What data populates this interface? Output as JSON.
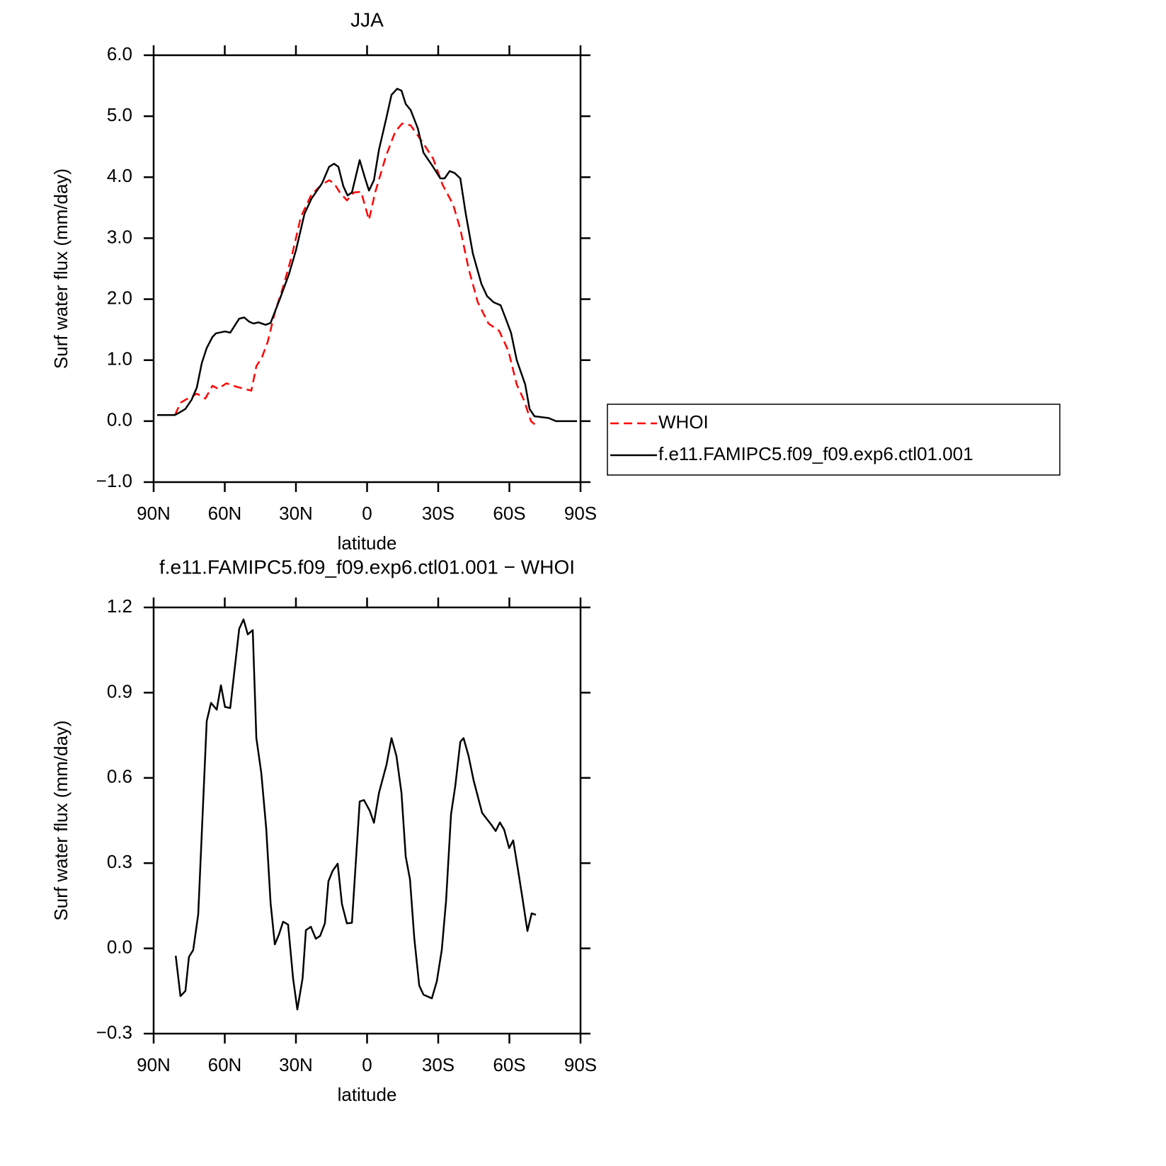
{
  "chart_data": [
    {
      "type": "line",
      "title": "JJA",
      "xlabel": "latitude",
      "ylabel": "Surf water flux (mm/day)",
      "xlim": [
        90,
        -90
      ],
      "xticks": [
        {
          "value": 90,
          "label": "90N"
        },
        {
          "value": 60,
          "label": "60N"
        },
        {
          "value": 30,
          "label": "30N"
        },
        0,
        {
          "value": -30,
          "label": "30S"
        },
        {
          "value": -60,
          "label": "60S"
        },
        {
          "value": -90,
          "label": "90S"
        }
      ],
      "ylim": [
        -1,
        6
      ],
      "yticks": [
        {
          "value": -1,
          "label": "−1.0"
        },
        {
          "value": 0,
          "label": "0.0"
        },
        {
          "value": 1,
          "label": "1.0"
        },
        {
          "value": 2,
          "label": "2.0"
        },
        {
          "value": 3,
          "label": "3.0"
        },
        {
          "value": 4,
          "label": "4.0"
        },
        {
          "value": 5,
          "label": "5.0"
        },
        {
          "value": 6,
          "label": "6.0"
        }
      ],
      "legend": "right",
      "series": [
        {
          "name": "WHOI",
          "color": "#ff0000",
          "dashed": true,
          "x": [
            81,
            78.7,
            76.6,
            74,
            71.8,
            68.2,
            65.2,
            62.8,
            59.3,
            54.8,
            48.8,
            46.7,
            44.3,
            41.9,
            38.9,
            35.4,
            31.8,
            27.9,
            23.4,
            19,
            16,
            13.9,
            11.5,
            8.5,
            5.5,
            2.5,
            -0.8,
            -3.4,
            -8,
            -11.9,
            -14.8,
            -18.4,
            -23.8,
            -27.9,
            -31.8,
            -36.3,
            -39.3,
            -42.8,
            -46.7,
            -51.2,
            -55.7,
            -59.6,
            -63.1,
            -66.1,
            -69.1,
            -71.5
          ],
          "values": [
            0.1,
            0.3,
            0.35,
            0.4,
            0.45,
            0.37,
            0.58,
            0.53,
            0.62,
            0.56,
            0.5,
            0.9,
            1.05,
            1.3,
            1.78,
            2.2,
            2.7,
            3.35,
            3.72,
            3.88,
            3.95,
            3.9,
            3.75,
            3.62,
            3.75,
            3.76,
            3.3,
            3.75,
            4.35,
            4.75,
            4.88,
            4.85,
            4.55,
            4.3,
            3.88,
            3.55,
            3.15,
            2.5,
            1.95,
            1.6,
            1.48,
            1.15,
            0.6,
            0.35,
            0.0,
            -0.08
          ]
        },
        {
          "name": "f.e11.FAMIPC5.f09_f09.exp6.ctl01.001",
          "color": "#000000",
          "dashed": false,
          "x": [
            88.5,
            84,
            81,
            78.7,
            76.6,
            74,
            71.8,
            69.7,
            67.6,
            65.2,
            63.7,
            59.9,
            57.7,
            53.9,
            51.8,
            49.7,
            47.9,
            45.8,
            42.8,
            40.7,
            36.8,
            33,
            30,
            26.4,
            23.4,
            19,
            16,
            13.9,
            12.1,
            10,
            8.2,
            6.4,
            3.1,
            1,
            -0.8,
            -2.9,
            -5,
            -8,
            -10.3,
            -12.7,
            -14.5,
            -16.3,
            -18.4,
            -21.4,
            -23.8,
            -27.3,
            -30.9,
            -32.7,
            -34.8,
            -36.9,
            -39.3,
            -41.6,
            -44.6,
            -48.2,
            -50.6,
            -53.3,
            -56.3,
            -58.1,
            -60.7,
            -63.1,
            -66.7,
            -68.5,
            -70.6,
            -76.6,
            -79.6,
            -84,
            -88.5
          ],
          "values": [
            0.1,
            0.1,
            0.1,
            0.15,
            0.2,
            0.35,
            0.55,
            0.95,
            1.2,
            1.38,
            1.44,
            1.47,
            1.45,
            1.68,
            1.7,
            1.63,
            1.6,
            1.62,
            1.58,
            1.61,
            2.0,
            2.4,
            2.8,
            3.4,
            3.65,
            3.9,
            4.17,
            4.22,
            4.17,
            3.85,
            3.7,
            3.75,
            4.28,
            4.0,
            3.78,
            3.95,
            4.45,
            4.95,
            5.35,
            5.45,
            5.42,
            5.2,
            5.1,
            4.8,
            4.4,
            4.2,
            3.98,
            3.98,
            4.1,
            4.07,
            3.98,
            3.4,
            2.75,
            2.25,
            2.05,
            1.95,
            1.9,
            1.72,
            1.45,
            1.0,
            0.6,
            0.2,
            0.08,
            0.05,
            0.0,
            0.0,
            0.0
          ]
        }
      ]
    },
    {
      "type": "line",
      "title": "f.e11.FAMIPC5.f09_f09.exp6.ctl01.001 − WHOI",
      "xlabel": "latitude",
      "ylabel": "Surf water flux (mm/day)",
      "xlim": [
        90,
        -90
      ],
      "xticks": [
        {
          "value": 90,
          "label": "90N"
        },
        {
          "value": 60,
          "label": "60N"
        },
        {
          "value": 30,
          "label": "30N"
        },
        0,
        {
          "value": -30,
          "label": "30S"
        },
        {
          "value": -60,
          "label": "60S"
        },
        {
          "value": -90,
          "label": "90S"
        }
      ],
      "ylim": [
        -0.3,
        1.2
      ],
      "yticks": [
        {
          "value": -0.3,
          "label": "−0.3"
        },
        {
          "value": 0,
          "label": "0.0"
        },
        0.3,
        0.6,
        0.9,
        1.2
      ],
      "color": "#000000",
      "x": [
        80.7,
        78.7,
        76.6,
        75.1,
        73.3,
        71.2,
        67.6,
        65.8,
        63.4,
        61.6,
        59.9,
        57.7,
        53.9,
        52.1,
        50.3,
        48.2,
        46.7,
        44.6,
        42.5,
        40.7,
        38.9,
        37.1,
        35.4,
        33.3,
        31.2,
        29.4,
        27.2,
        25.8,
        23.7,
        21.6,
        19.8,
        17.8,
        16.3,
        14.5,
        12.4,
        10.6,
        8.5,
        6.4,
        3.1,
        1.3,
        -1.1,
        -2.9,
        -5,
        -8.2,
        -10.3,
        -12.4,
        -14.5,
        -16.3,
        -18.1,
        -19.9,
        -22,
        -23.8,
        -27.3,
        -29.4,
        -31.5,
        -33.3,
        -35.4,
        -37.2,
        -39.3,
        -40.7,
        -42.8,
        -44.9,
        -48.5,
        -52.4,
        -54.2,
        -56,
        -57.8,
        -59.9,
        -61.6,
        -63.7,
        -65.5,
        -67.6,
        -69.4,
        -71.2
      ],
      "values": [
        -0.026,
        -0.168,
        -0.15,
        -0.03,
        -0.006,
        0.12,
        0.8,
        0.864,
        0.84,
        0.926,
        0.85,
        0.846,
        1.125,
        1.158,
        1.105,
        1.12,
        0.74,
        0.617,
        0.42,
        0.16,
        0.014,
        0.05,
        0.094,
        0.084,
        -0.106,
        -0.215,
        -0.106,
        0.064,
        0.076,
        0.034,
        0.044,
        0.088,
        0.236,
        0.273,
        0.298,
        0.156,
        0.088,
        0.09,
        0.517,
        0.522,
        0.485,
        0.442,
        0.547,
        0.647,
        0.74,
        0.677,
        0.547,
        0.323,
        0.243,
        0.036,
        -0.131,
        -0.163,
        -0.176,
        -0.116,
        -0.006,
        0.168,
        0.472,
        0.572,
        0.727,
        0.74,
        0.677,
        0.592,
        0.477,
        0.435,
        0.413,
        0.443,
        0.418,
        0.353,
        0.38,
        0.273,
        0.178,
        0.061,
        0.123,
        0.118
      ]
    }
  ]
}
